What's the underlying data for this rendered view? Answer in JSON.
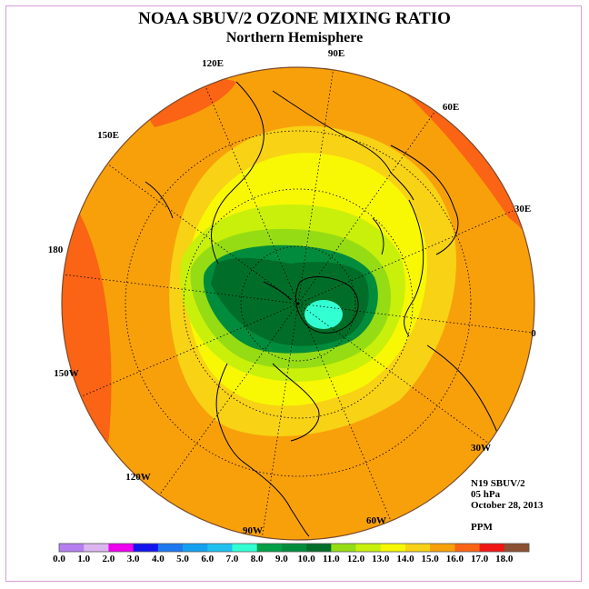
{
  "title": "NOAA SBUV/2 OZONE MIXING RATIO",
  "subtitle": "Northern Hemisphere",
  "longitude_labels": [
    "90E",
    "60E",
    "30E",
    "0",
    "30W",
    "60W",
    "90W",
    "120W",
    "150W",
    "180",
    "150E",
    "120E"
  ],
  "info": {
    "instrument": "N19 SBUV/2",
    "level": "05 hPa",
    "date": "October 28, 2013",
    "units": "PPM"
  },
  "colorbar": {
    "ticks": [
      "0.0",
      "1.0",
      "2.0",
      "3.0",
      "4.0",
      "5.0",
      "6.0",
      "7.0",
      "8.0",
      "9.0",
      "10.0",
      "11.0",
      "12.0",
      "13.0",
      "14.0",
      "15.0",
      "16.0",
      "17.0",
      "18.0"
    ],
    "colors": [
      "#b57ef0",
      "#dcb4f0",
      "#ee00ee",
      "#1414ee",
      "#1e78f0",
      "#14a0f0",
      "#1ec0f0",
      "#32ffd2",
      "#00a046",
      "#008c3c",
      "#006e28",
      "#96dc14",
      "#c8f00a",
      "#f8f804",
      "#f8d214",
      "#f8a00a",
      "#fa6414",
      "#f01414",
      "#8c5032"
    ]
  },
  "colors": {
    "ocean_base": "#f8a00a",
    "frame": "#d7a0d7"
  }
}
